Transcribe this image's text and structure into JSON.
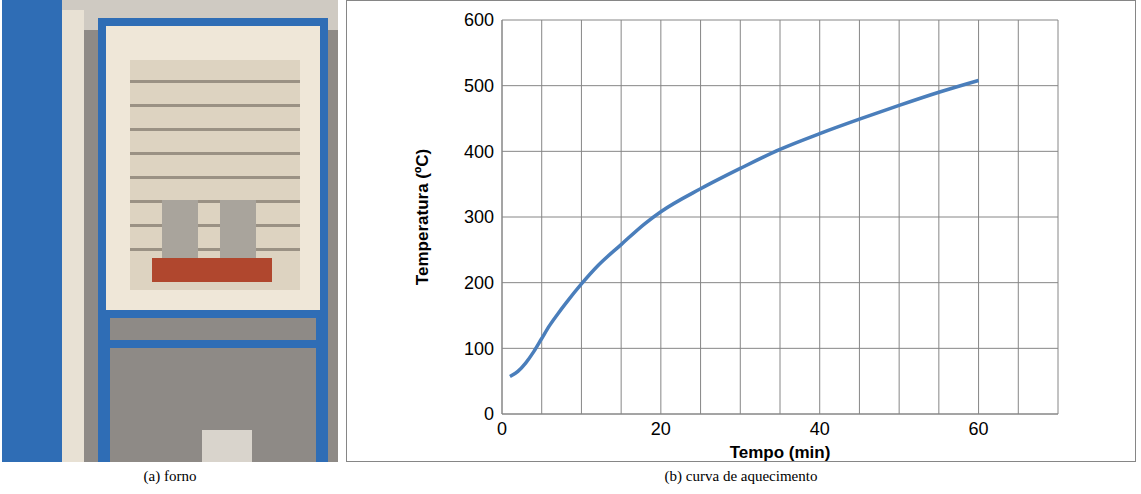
{
  "photo": {
    "caption": "(a) forno"
  },
  "chart_data": {
    "type": "line",
    "caption": "(b) curva de aquecimento",
    "x_label": "Tempo (min)",
    "y_label": "Temperatura (ºC)",
    "x": [
      1,
      2,
      3,
      4,
      5,
      6,
      7,
      8,
      10,
      12,
      15,
      18,
      20,
      25,
      30,
      35,
      40,
      45,
      50,
      55,
      60
    ],
    "values": [
      57,
      65,
      78,
      95,
      115,
      135,
      152,
      168,
      198,
      225,
      258,
      290,
      308,
      343,
      374,
      403,
      427,
      449,
      470,
      490,
      508
    ],
    "color": "#4a7ebb",
    "xlim": [
      0,
      70
    ],
    "xticks": [
      0,
      20,
      40,
      60
    ],
    "ylim": [
      0,
      600
    ],
    "yticks": [
      0,
      100,
      200,
      300,
      400,
      500,
      600
    ],
    "grid": true
  }
}
